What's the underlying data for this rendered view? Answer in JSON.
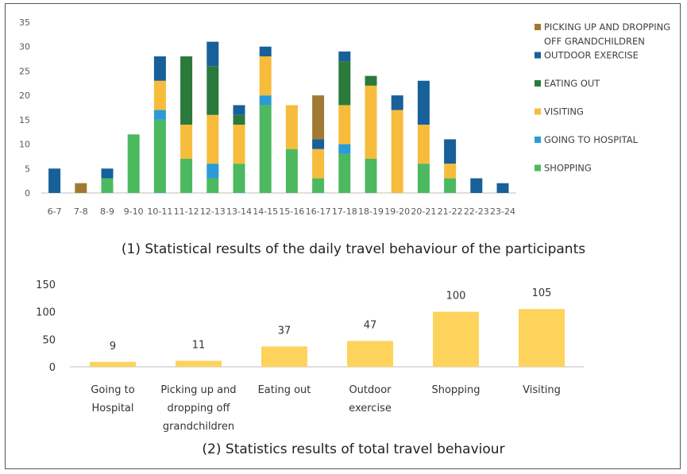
{
  "chart_data": [
    {
      "type": "bar",
      "stacked": true,
      "caption": "(1) Statistical results of the daily travel behaviour of the participants",
      "categories": [
        "6-7",
        "7-8",
        "8-9",
        "9-10",
        "10-11",
        "11-12",
        "12-13",
        "13-14",
        "14-15",
        "15-16",
        "16-17",
        "17-18",
        "18-19",
        "19-20",
        "20-21",
        "21-22",
        "22-23",
        "23-24"
      ],
      "ylim": [
        0,
        35
      ],
      "yticks": [
        0,
        5,
        10,
        15,
        20,
        25,
        30,
        35
      ],
      "legend_position": "right",
      "series": [
        {
          "name": "SHOPPING",
          "color": "#4cb960",
          "values": [
            0,
            0,
            3,
            12,
            15,
            7,
            3,
            6,
            18,
            9,
            3,
            8,
            7,
            0,
            6,
            3,
            0,
            0
          ]
        },
        {
          "name": "GOING TO HOSPITAL",
          "color": "#2a9bd6",
          "values": [
            0,
            0,
            0,
            0,
            2,
            0,
            3,
            0,
            2,
            0,
            0,
            2,
            0,
            0,
            0,
            0,
            0,
            0
          ]
        },
        {
          "name": "VISITING",
          "color": "#f7bc3c",
          "values": [
            0,
            0,
            0,
            0,
            6,
            7,
            10,
            8,
            8,
            9,
            6,
            8,
            15,
            17,
            8,
            3,
            0,
            0
          ]
        },
        {
          "name": "EATING OUT",
          "color": "#2a7a3b",
          "values": [
            0,
            0,
            0,
            0,
            0,
            14,
            10,
            2,
            0,
            0,
            0,
            9,
            2,
            0,
            0,
            0,
            0,
            0
          ]
        },
        {
          "name": "OUTDOOR EXERCISE",
          "color": "#17609a",
          "values": [
            5,
            0,
            2,
            0,
            5,
            0,
            5,
            2,
            2,
            0,
            2,
            2,
            0,
            3,
            9,
            5,
            3,
            2
          ]
        },
        {
          "name": "PICKING UP AND DROPPING OFF GRANDCHILDREN",
          "color": "#a07a32",
          "values": [
            0,
            2,
            0,
            0,
            0,
            0,
            0,
            0,
            0,
            0,
            9,
            0,
            0,
            0,
            0,
            0,
            0,
            0
          ]
        }
      ],
      "legend_lines": {
        "PICKING UP AND DROPPING OFF GRANDCHILDREN": [
          "PICKING UP AND DROPPING",
          "OFF GRANDCHILDREN"
        ]
      }
    },
    {
      "type": "bar",
      "caption": "(2) Statistics results of total travel behaviour",
      "categories": [
        "Going to Hospital",
        "Picking up and dropping off grandchildren",
        "Eating out",
        "Outdoor exercise",
        "Shopping",
        "Visiting"
      ],
      "category_lines": [
        [
          "Going to",
          "Hospital"
        ],
        [
          "Picking up and",
          "dropping off",
          "grandchildren"
        ],
        [
          "Eating out"
        ],
        [
          "Outdoor",
          "exercise"
        ],
        [
          "Shopping"
        ],
        [
          "Visiting"
        ]
      ],
      "values": [
        9,
        11,
        37,
        47,
        100,
        105
      ],
      "ylim": [
        0,
        150
      ],
      "yticks": [
        0,
        50,
        100,
        150
      ],
      "color": "#fdd35c"
    }
  ]
}
